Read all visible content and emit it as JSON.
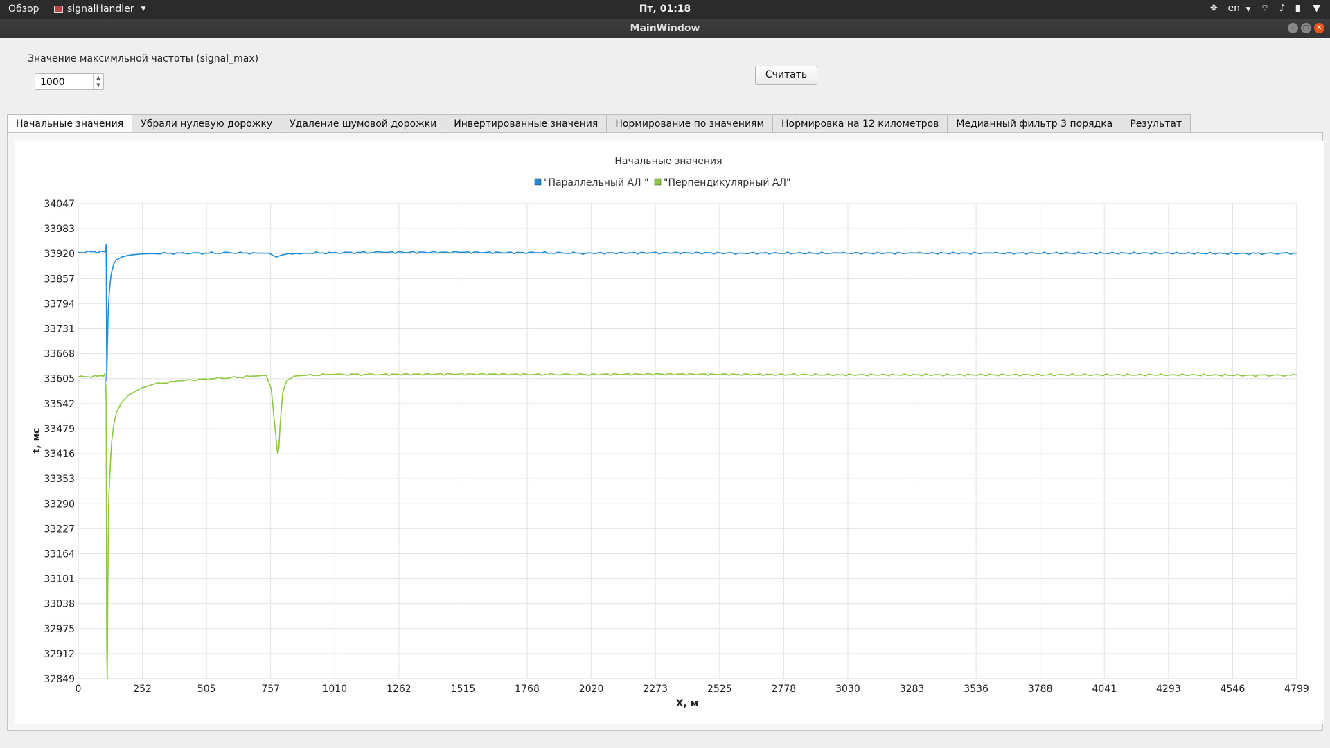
{
  "topbar": {
    "overview": "Обзор",
    "app_name": "signalHandler",
    "clock": "Пт, 01:18",
    "lang": "en"
  },
  "window": {
    "title": "MainWindow"
  },
  "controls": {
    "freq_label": "Значение максимльной частоты (signal_max)",
    "freq_value": "1000",
    "calc_button": "Считать"
  },
  "tabs": [
    {
      "label": "Начальные значения",
      "active": true
    },
    {
      "label": "Убрали нулевую дорожку"
    },
    {
      "label": "Удаление шумовой дорожки"
    },
    {
      "label": "Инвертированные значения"
    },
    {
      "label": "Нормирование по значениям"
    },
    {
      "label": "Нормировка на 12 километров"
    },
    {
      "label": "Медианный фильтр 3 порядка"
    },
    {
      "label": "Результат"
    }
  ],
  "chart_data": {
    "type": "line",
    "title": "Начальные значения",
    "xlabel": "X, м",
    "ylabel": "t, мс",
    "xlim": [
      0,
      4799
    ],
    "ylim": [
      32849,
      34047
    ],
    "grid": true,
    "legend_position": "top-center",
    "x_ticks": [
      "0",
      "252",
      "505",
      "757",
      "1010",
      "1262",
      "1515",
      "1768",
      "2020",
      "2273",
      "2525",
      "2778",
      "3030",
      "3283",
      "3536",
      "3788",
      "4041",
      "4293",
      "4546",
      "4799"
    ],
    "y_ticks": [
      "34047",
      "33983",
      "33920",
      "33857",
      "33794",
      "33731",
      "33668",
      "33605",
      "33542",
      "33479",
      "33416",
      "33353",
      "33290",
      "33227",
      "33164",
      "33101",
      "33038",
      "32975",
      "32912",
      "32849"
    ],
    "series": [
      {
        "name": "\"Параллельный АЛ \"",
        "color": "#1f8dd6",
        "x": [
          0,
          100,
          105,
          108,
          110,
          112,
          115,
          118,
          122,
          126,
          130,
          140,
          150,
          170,
          200,
          250,
          300,
          400,
          500,
          600,
          700,
          750,
          780,
          800,
          830,
          900,
          1000,
          1200,
          1500,
          1800,
          2000,
          2300,
          2600,
          3000,
          3300,
          3600,
          4000,
          4300,
          4600,
          4799
        ],
        "y": [
          33924,
          33926,
          33925,
          33930,
          33945,
          33600,
          33700,
          33780,
          33820,
          33850,
          33870,
          33895,
          33905,
          33912,
          33917,
          33920,
          33921,
          33922,
          33922,
          33923,
          33922,
          33922,
          33912,
          33917,
          33921,
          33922,
          33923,
          33924,
          33924,
          33923,
          33922,
          33923,
          33922,
          33922,
          33922,
          33922,
          33922,
          33922,
          33921,
          33922
        ]
      },
      {
        "name": "\"Перпендикулярный АЛ\"",
        "color": "#8dc63f",
        "x": [
          0,
          100,
          105,
          108,
          110,
          112,
          114,
          116,
          118,
          120,
          124,
          128,
          132,
          140,
          150,
          170,
          200,
          250,
          300,
          400,
          500,
          600,
          700,
          740,
          760,
          775,
          785,
          790,
          795,
          805,
          820,
          850,
          900,
          1000,
          1200,
          1500,
          1800,
          2000,
          2300,
          2600,
          3000,
          3300,
          3600,
          4000,
          4300,
          4600,
          4799
        ],
        "y": [
          33610,
          33612,
          33620,
          33590,
          33550,
          32930,
          32849,
          33050,
          33200,
          33300,
          33360,
          33410,
          33450,
          33490,
          33520,
          33545,
          33565,
          33582,
          33592,
          33600,
          33605,
          33608,
          33612,
          33614,
          33580,
          33480,
          33416,
          33430,
          33490,
          33570,
          33600,
          33612,
          33614,
          33616,
          33616,
          33617,
          33616,
          33616,
          33617,
          33616,
          33615,
          33615,
          33615,
          33615,
          33615,
          33614,
          33614
        ]
      }
    ]
  }
}
